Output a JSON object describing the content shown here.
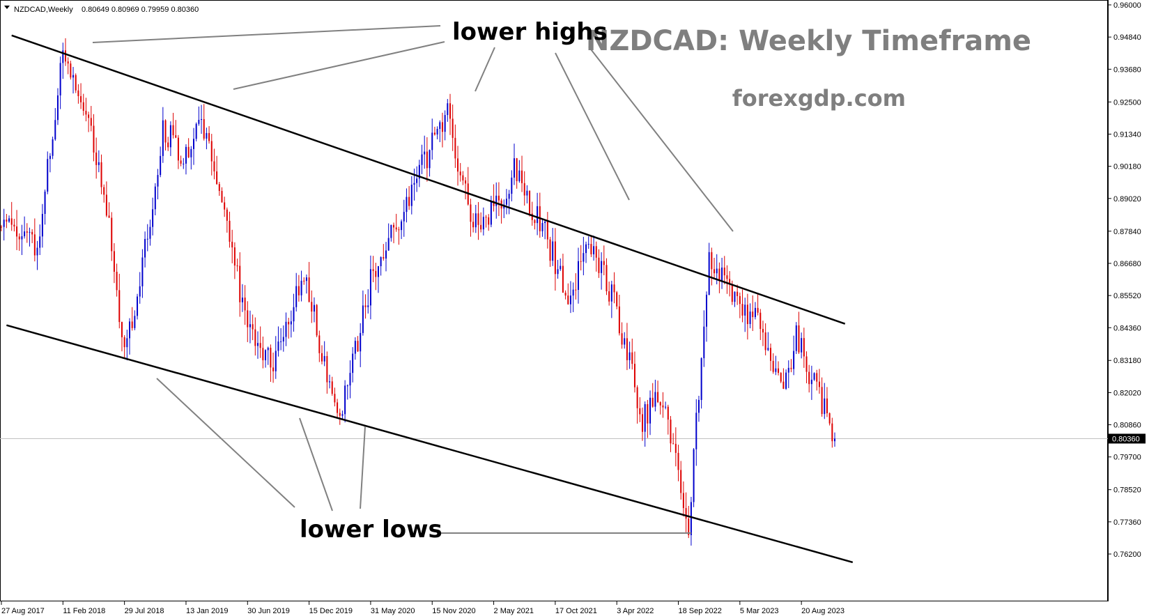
{
  "info": {
    "symbol_timeframe": "NZDCAD,Weekly",
    "ohlc": "0.80649 0.80969 0.79959 0.80360"
  },
  "overlay": {
    "title": "NZDCAD: Weekly Timeframe",
    "site": "forexgdp.com",
    "upper_label": "lower highs",
    "lower_label": "lower lows"
  },
  "colors": {
    "bull": "#0000cc",
    "bear": "#dd0000",
    "channel": "#000000",
    "pointer": "#808080",
    "title_text": "#7f7f7f",
    "current_price_line": "#c0c0c0",
    "current_price_box": "#000000"
  },
  "chart_data": {
    "type": "candlestick",
    "timeframe": "Weekly",
    "symbol": "NZDCAD",
    "y_ticks": [
      "0.96000",
      "0.94840",
      "0.93680",
      "0.92500",
      "0.91340",
      "0.90180",
      "0.89020",
      "0.87840",
      "0.86680",
      "0.85520",
      "0.84360",
      "0.83180",
      "0.82020",
      "0.80860",
      "0.79700",
      "0.78520",
      "0.77360",
      "0.76200"
    ],
    "y_range": [
      0.7605,
      0.96
    ],
    "x_tick_labels": [
      "27 Aug 2017",
      "11 Feb 2018",
      "29 Jul 2018",
      "13 Jan 2019",
      "30 Jun 2019",
      "15 Dec 2019",
      "31 May 2020",
      "15 Nov 2020",
      "2 May 2021",
      "17 Oct 2021",
      "3 Apr 2022",
      "18 Sep 2022",
      "5 Mar 2023",
      "20 Aug 2023"
    ],
    "x_range": [
      "2017-08-27",
      "2023-11-19"
    ],
    "current_price": "0.80360",
    "close_path_anchors": [
      [
        "2017-08-27",
        0.88
      ],
      [
        "2017-12-03",
        0.872
      ],
      [
        "2018-02-11",
        0.945
      ],
      [
        "2018-04-01",
        0.925
      ],
      [
        "2018-06-03",
        0.895
      ],
      [
        "2018-07-29",
        0.835
      ],
      [
        "2018-09-09",
        0.86
      ],
      [
        "2018-11-11",
        0.915
      ],
      [
        "2019-01-13",
        0.905
      ],
      [
        "2019-02-24",
        0.92
      ],
      [
        "2019-06-30",
        0.845
      ],
      [
        "2019-09-08",
        0.83
      ],
      [
        "2019-12-01",
        0.865
      ],
      [
        "2020-03-01",
        0.808
      ],
      [
        "2020-05-31",
        0.86
      ],
      [
        "2020-08-02",
        0.878
      ],
      [
        "2020-11-15",
        0.91
      ],
      [
        "2020-12-27",
        0.92
      ],
      [
        "2021-03-07",
        0.88
      ],
      [
        "2021-05-02",
        0.885
      ],
      [
        "2021-06-27",
        0.9
      ],
      [
        "2021-09-05",
        0.882
      ],
      [
        "2021-11-21",
        0.855
      ],
      [
        "2022-01-23",
        0.875
      ],
      [
        "2022-04-03",
        0.85
      ],
      [
        "2022-06-12",
        0.81
      ],
      [
        "2022-07-31",
        0.82
      ],
      [
        "2022-10-16",
        0.773
      ],
      [
        "2022-12-11",
        0.868
      ],
      [
        "2023-02-19",
        0.855
      ],
      [
        "2023-04-23",
        0.845
      ],
      [
        "2023-06-25",
        0.82
      ],
      [
        "2023-08-06",
        0.84
      ],
      [
        "2023-11-19",
        0.8036
      ]
    ],
    "trend_lines": [
      {
        "name": "upper channel",
        "from": [
          "2017-09-24",
          0.949
        ],
        "to": [
          "2023-12-17",
          0.845
        ]
      },
      {
        "name": "lower channel",
        "from": [
          "2017-09-10",
          0.8445
        ],
        "to": [
          "2024-01-07",
          0.759
        ]
      }
    ],
    "grid": false,
    "legend": "none"
  }
}
